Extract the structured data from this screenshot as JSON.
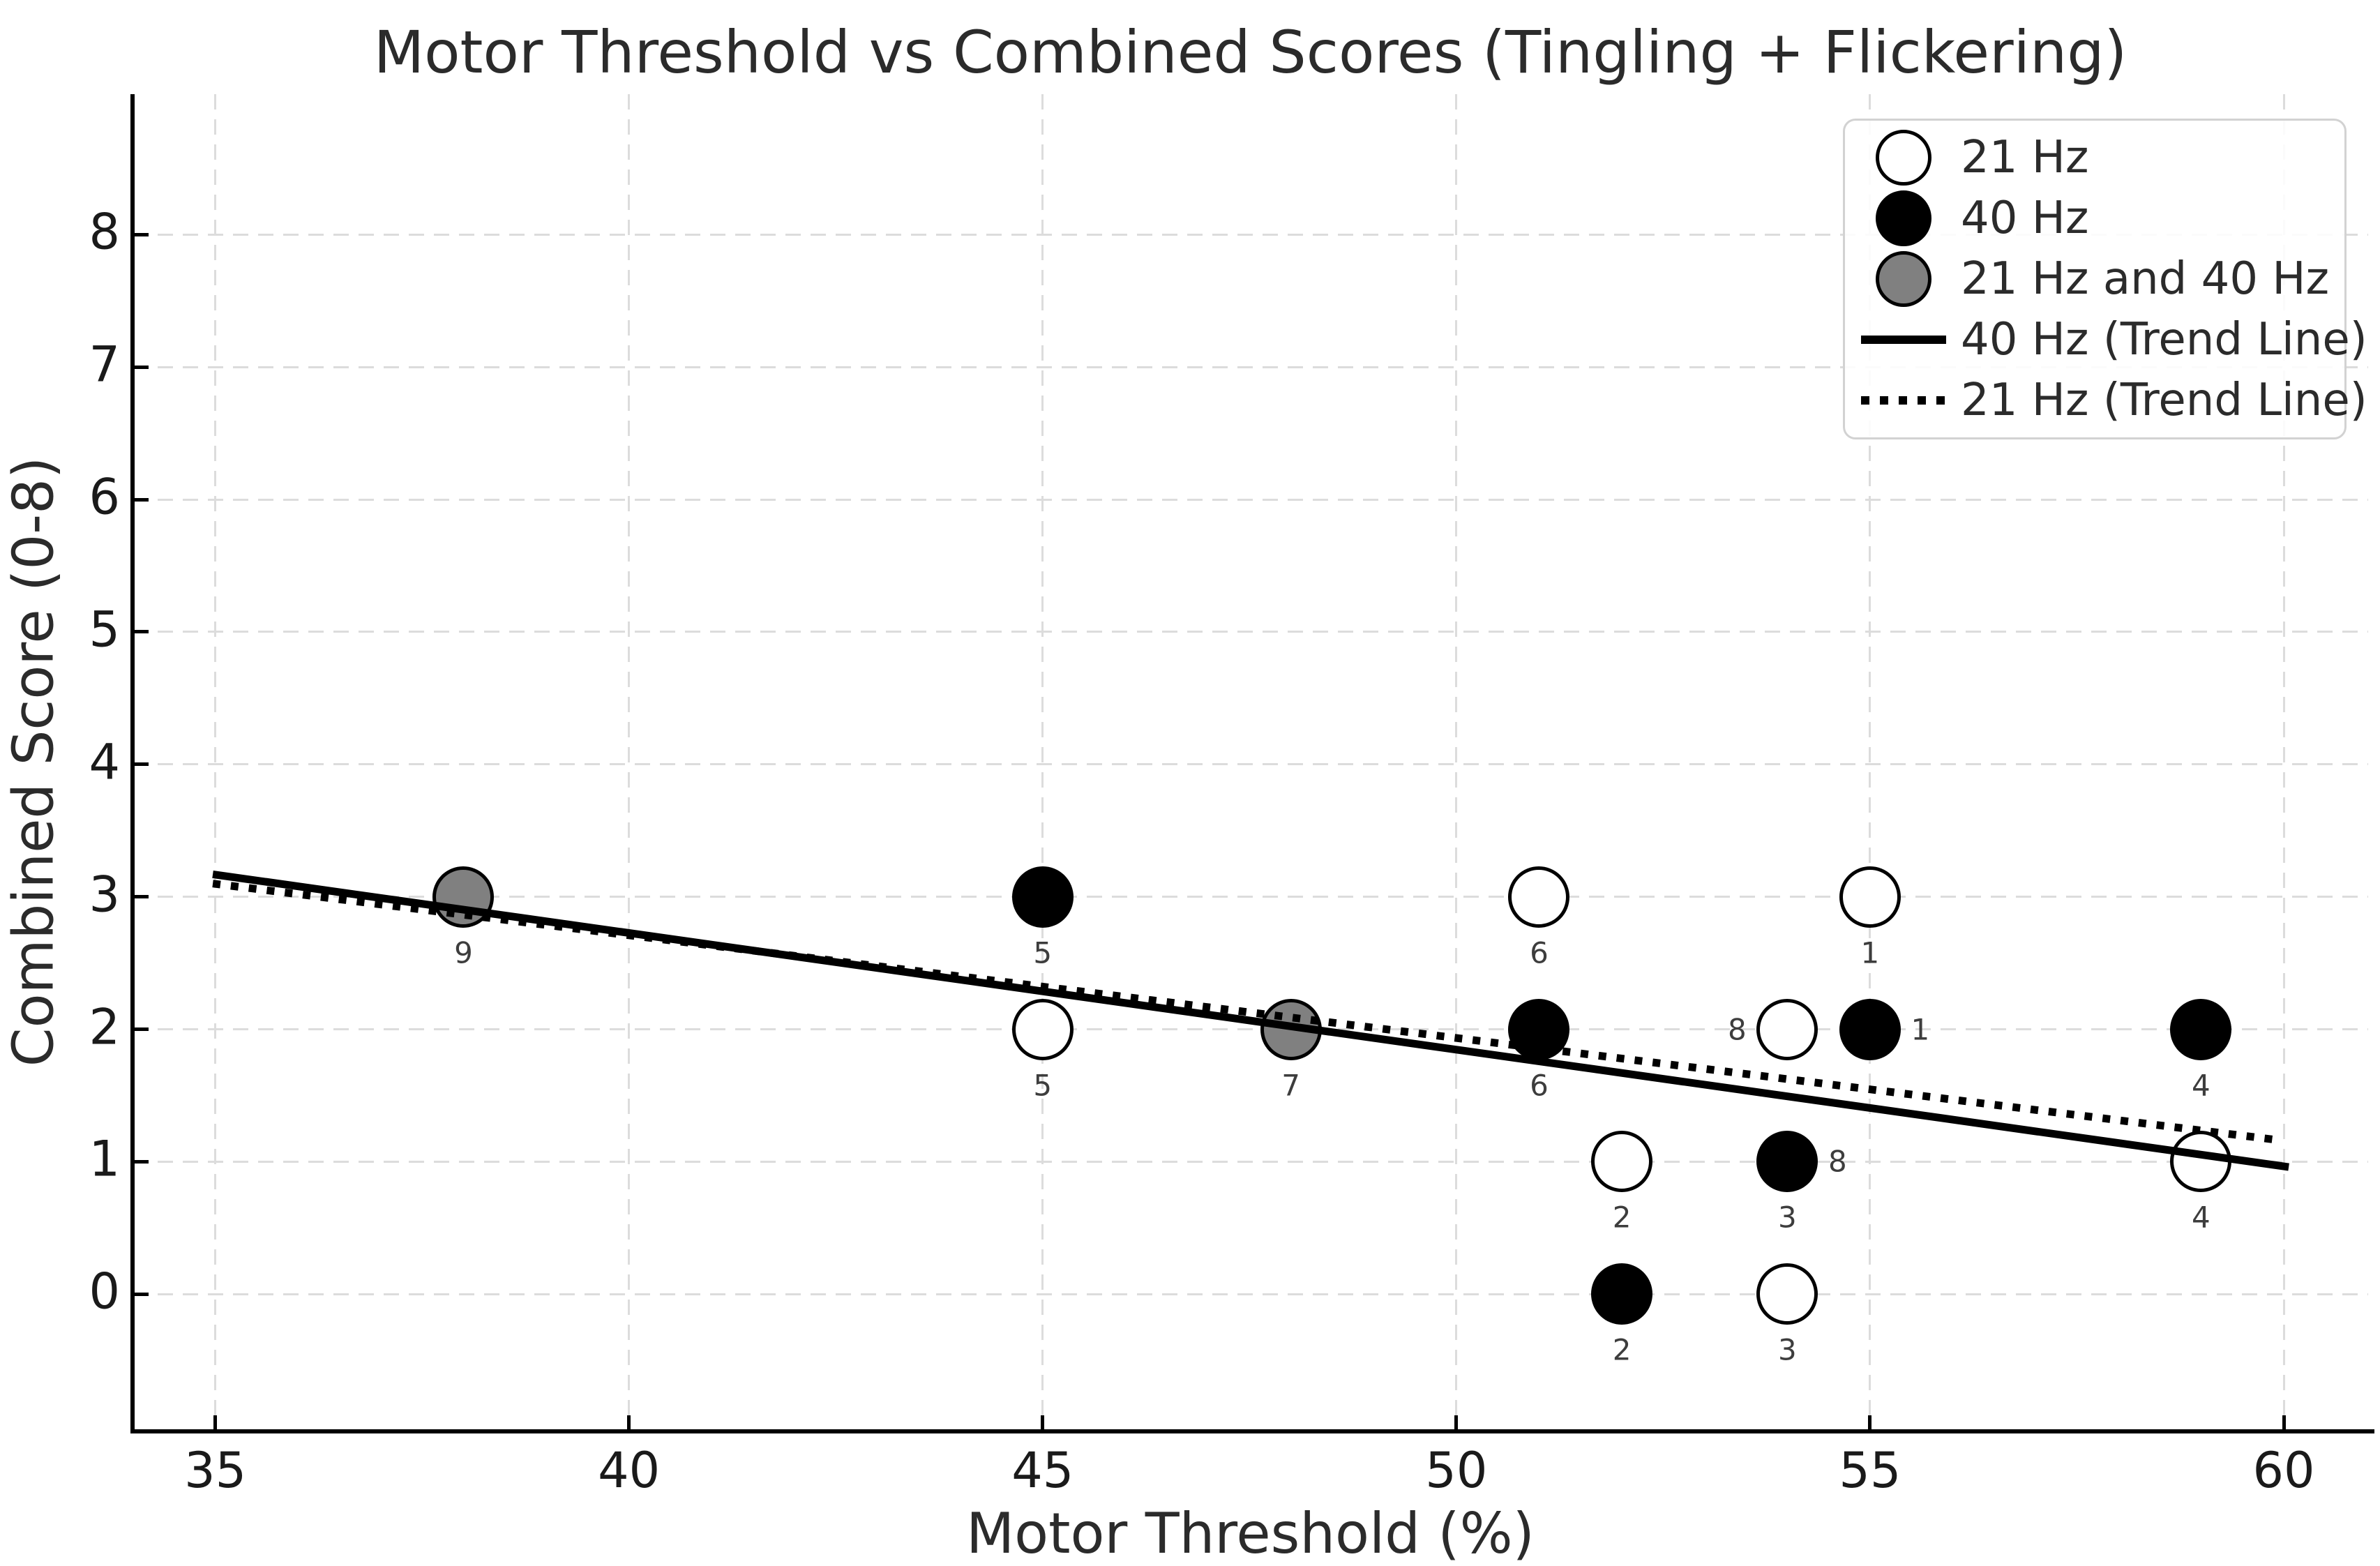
{
  "chart_data": {
    "type": "scatter",
    "title": "Motor Threshold vs Combined Scores (Tingling + Flickering)",
    "xlabel": "Motor Threshold (%)",
    "ylabel": "Combined Score (0-8)",
    "x_ticks": [
      35,
      40,
      45,
      50,
      55,
      60
    ],
    "y_ticks": [
      0,
      1,
      2,
      3,
      4,
      5,
      6,
      7,
      8
    ],
    "xlim": [
      34.0,
      61.02
    ],
    "ylim": [
      -1.02,
      9.06
    ],
    "grid": true,
    "legend_position": "top-right",
    "colors": {
      "marker_21hz": "#ffffff",
      "marker_40hz": "#000000",
      "marker_both": "#808080",
      "marker_edge": "#000000",
      "trend_line": "#000000",
      "grid": "#dcdcdc",
      "text": "#2b2b2b",
      "annotation": "#3d3d3d"
    },
    "legend": [
      {
        "label": "21 Hz",
        "marker": "circle",
        "fill": "#ffffff"
      },
      {
        "label": "40 Hz",
        "marker": "circle",
        "fill": "#000000"
      },
      {
        "label": "21 Hz and 40 Hz",
        "marker": "circle",
        "fill": "#808080"
      },
      {
        "label": "40 Hz (Trend Line)",
        "marker": "line-solid"
      },
      {
        "label": "21 Hz (Trend Line)",
        "marker": "line-dotted"
      }
    ],
    "series": [
      {
        "name": "21 Hz",
        "fill": "#ffffff",
        "points": [
          {
            "x": 45,
            "y": 2,
            "labels": [
              {
                "text": "5",
                "pos": "below"
              }
            ]
          },
          {
            "x": 51,
            "y": 3,
            "labels": [
              {
                "text": "6",
                "pos": "below"
              }
            ]
          },
          {
            "x": 52,
            "y": 1,
            "labels": [
              {
                "text": "2",
                "pos": "below"
              }
            ]
          },
          {
            "x": 54,
            "y": 2,
            "labels": [
              {
                "text": "8",
                "pos": "left"
              }
            ]
          },
          {
            "x": 54,
            "y": 0,
            "labels": [
              {
                "text": "3",
                "pos": "below"
              }
            ]
          },
          {
            "x": 55,
            "y": 3,
            "labels": [
              {
                "text": "1",
                "pos": "below"
              }
            ]
          },
          {
            "x": 59,
            "y": 1,
            "labels": [
              {
                "text": "4",
                "pos": "below"
              }
            ]
          }
        ]
      },
      {
        "name": "40 Hz",
        "fill": "#000000",
        "points": [
          {
            "x": 45,
            "y": 3,
            "labels": [
              {
                "text": "5",
                "pos": "below"
              }
            ]
          },
          {
            "x": 51,
            "y": 2,
            "labels": [
              {
                "text": "6",
                "pos": "below"
              }
            ]
          },
          {
            "x": 52,
            "y": 0,
            "labels": [
              {
                "text": "2",
                "pos": "below"
              }
            ]
          },
          {
            "x": 54,
            "y": 1,
            "labels": [
              {
                "text": "3",
                "pos": "below"
              },
              {
                "text": "8",
                "pos": "right"
              }
            ]
          },
          {
            "x": 55,
            "y": 2,
            "labels": [
              {
                "text": "1",
                "pos": "right"
              }
            ]
          },
          {
            "x": 59,
            "y": 2,
            "labels": [
              {
                "text": "4",
                "pos": "below"
              }
            ]
          }
        ]
      },
      {
        "name": "21 Hz and 40 Hz",
        "fill": "#808080",
        "points": [
          {
            "x": 38,
            "y": 3,
            "labels": [
              {
                "text": "9",
                "pos": "below"
              }
            ]
          },
          {
            "x": 48,
            "y": 2,
            "labels": [
              {
                "text": "7",
                "pos": "below"
              }
            ]
          }
        ]
      }
    ],
    "trend_lines": [
      {
        "name": "40 Hz (Trend Line)",
        "style": "solid",
        "x1": 34.97,
        "y1": 3.17,
        "x2": 60.06,
        "y2": 0.96
      },
      {
        "name": "21 Hz (Trend Line)",
        "style": "dotted",
        "x1": 34.97,
        "y1": 3.1,
        "x2": 59.98,
        "y2": 1.16
      }
    ]
  }
}
